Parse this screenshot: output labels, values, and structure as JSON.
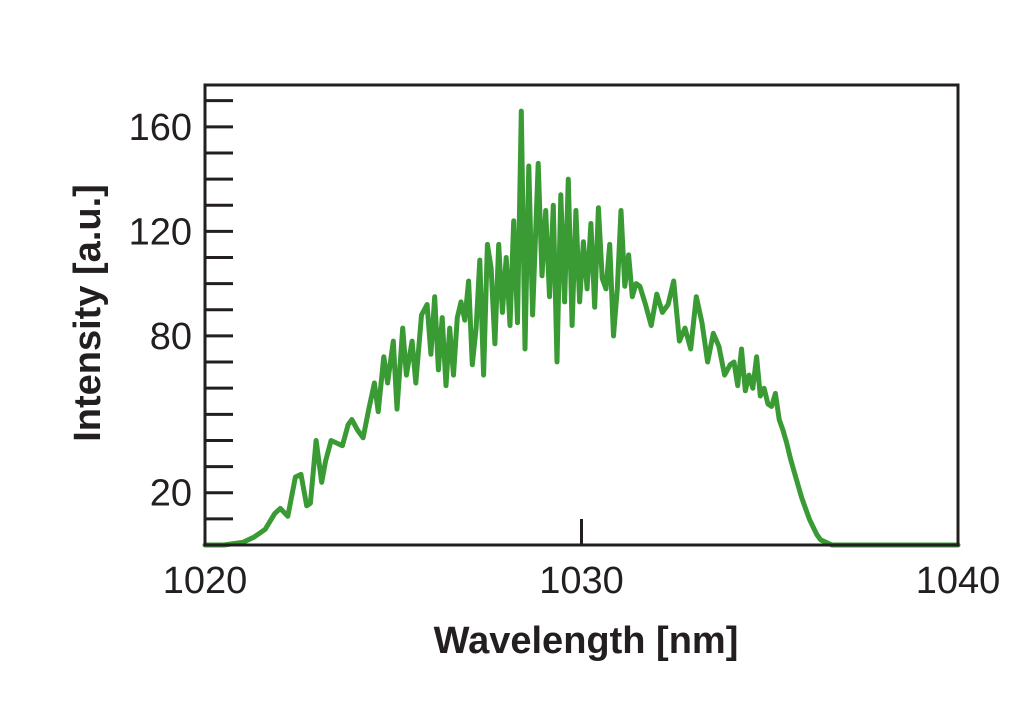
{
  "chart_data": {
    "type": "line",
    "xlabel": "Wavelength [nm]",
    "ylabel": "Intensity [a.u.]",
    "xlim": [
      1020,
      1040
    ],
    "ylim": [
      0,
      176
    ],
    "x_ticks": [
      {
        "value": 1020,
        "label": "1020"
      },
      {
        "value": 1030,
        "label": "1030"
      },
      {
        "value": 1040,
        "label": "1040"
      }
    ],
    "y_ticks": [
      {
        "value": 20,
        "label": "20"
      },
      {
        "value": 80,
        "label": "80"
      },
      {
        "value": 120,
        "label": "120"
      },
      {
        "value": 160,
        "label": "160"
      }
    ],
    "y_minor_ticks": [
      10,
      20,
      30,
      40,
      50,
      60,
      70,
      80,
      90,
      100,
      110,
      120,
      130,
      140,
      150,
      160,
      170
    ],
    "grid": false,
    "legend": "none",
    "line_color": "#3a9b35",
    "series": [
      {
        "x": [
          1020.0,
          1020.5,
          1021.0,
          1021.3,
          1021.6,
          1021.85,
          1022.0,
          1022.2,
          1022.4,
          1022.55,
          1022.7,
          1022.8,
          1022.95,
          1023.1,
          1023.2,
          1023.35,
          1023.5,
          1023.65,
          1023.8,
          1023.9,
          1024.05,
          1024.2,
          1024.35,
          1024.5,
          1024.6,
          1024.75,
          1024.85,
          1025.0,
          1025.1,
          1025.25,
          1025.35,
          1025.5,
          1025.6,
          1025.75,
          1025.9,
          1026.0,
          1026.1,
          1026.2,
          1026.3,
          1026.4,
          1026.5,
          1026.6,
          1026.7,
          1026.8,
          1026.9,
          1027.0,
          1027.1,
          1027.2,
          1027.3,
          1027.4,
          1027.5,
          1027.6,
          1027.7,
          1027.8,
          1027.9,
          1028.0,
          1028.1,
          1028.2,
          1028.3,
          1028.4,
          1028.5,
          1028.6,
          1028.7,
          1028.85,
          1028.95,
          1029.05,
          1029.15,
          1029.25,
          1029.35,
          1029.45,
          1029.55,
          1029.65,
          1029.75,
          1029.85,
          1029.95,
          1030.05,
          1030.15,
          1030.25,
          1030.35,
          1030.45,
          1030.55,
          1030.65,
          1030.75,
          1030.85,
          1030.95,
          1031.05,
          1031.15,
          1031.25,
          1031.35,
          1031.45,
          1031.55,
          1031.7,
          1031.85,
          1032.0,
          1032.15,
          1032.3,
          1032.45,
          1032.6,
          1032.75,
          1032.9,
          1033.05,
          1033.2,
          1033.35,
          1033.5,
          1033.65,
          1033.8,
          1033.95,
          1034.05,
          1034.15,
          1034.25,
          1034.35,
          1034.45,
          1034.55,
          1034.65,
          1034.75,
          1034.85,
          1034.95,
          1035.05,
          1035.15,
          1035.25,
          1035.35,
          1035.45,
          1035.55,
          1035.65,
          1035.75,
          1035.85,
          1035.95,
          1036.05,
          1036.15,
          1036.25,
          1036.35,
          1036.5,
          1036.65,
          1036.8,
          1036.95,
          1037.1,
          1037.3,
          1037.5,
          1037.8,
          1038.1,
          1038.4,
          1038.7,
          1039.0,
          1039.5,
          1040.0
        ],
        "y": [
          0,
          0,
          1,
          3,
          6,
          12,
          14,
          11,
          26,
          27,
          15,
          16,
          40,
          24,
          32,
          40,
          39,
          38,
          46,
          48,
          44,
          41,
          52,
          62,
          51,
          72,
          62,
          78,
          52,
          83,
          65,
          78,
          62,
          88,
          92,
          73,
          95,
          67,
          87,
          61,
          83,
          65,
          87,
          93,
          86,
          101,
          69,
          83,
          109,
          65,
          115,
          106,
          77,
          115,
          89,
          110,
          84,
          124,
          85,
          166,
          75,
          145,
          88,
          146,
          103,
          128,
          95,
          130,
          70,
          134,
          93,
          140,
          84,
          128,
          93,
          116,
          98,
          123,
          91,
          129,
          102,
          98,
          115,
          80,
          98,
          128,
          99,
          111,
          95,
          100,
          99,
          92,
          84,
          96,
          89,
          92,
          101,
          78,
          83,
          75,
          95,
          85,
          70,
          81,
          76,
          65,
          69,
          70,
          61,
          75,
          59,
          65,
          60,
          72,
          57,
          60,
          54,
          53,
          58,
          48,
          44,
          39,
          33,
          28,
          23,
          18,
          14,
          10,
          7,
          4,
          2,
          1,
          0,
          0,
          0,
          0,
          0,
          0,
          0,
          0,
          0,
          0,
          0,
          0,
          0
        ],
        "jitter": [
          0,
          0,
          0,
          0,
          0,
          0,
          0,
          0,
          0,
          0,
          0,
          0,
          0,
          0,
          0,
          0,
          0,
          0,
          0,
          0,
          0,
          0,
          0,
          0,
          0,
          0,
          0,
          0,
          0,
          0,
          0,
          0,
          0,
          0,
          0,
          0,
          0,
          0,
          0,
          0,
          0,
          0,
          0,
          0,
          0,
          0,
          0,
          0,
          0,
          0,
          0,
          0,
          0,
          0,
          0,
          0,
          0,
          0,
          0,
          0,
          0,
          0,
          0,
          0,
          0,
          0,
          0,
          0,
          0,
          0,
          0,
          0,
          0,
          0,
          0,
          0,
          0,
          0,
          0,
          0,
          0,
          0,
          0,
          0,
          0,
          0,
          0,
          0,
          0,
          0,
          0,
          0,
          0,
          0,
          0,
          0,
          0,
          0,
          0,
          0,
          0,
          0,
          0,
          0,
          0,
          0,
          0,
          0,
          0,
          0,
          0,
          0,
          0,
          0,
          0,
          0,
          0,
          0,
          0,
          0,
          0,
          0,
          0,
          0,
          0,
          0,
          0,
          0,
          0,
          0,
          0,
          0,
          0,
          0,
          0,
          0,
          0,
          0,
          0,
          0,
          0,
          0,
          0,
          0,
          0
        ]
      }
    ]
  }
}
